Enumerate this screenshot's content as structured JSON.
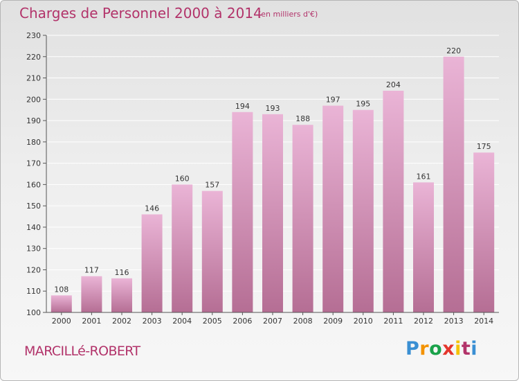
{
  "header": {
    "title": "Charges de Personnel 2000 à 2014",
    "subtitle": "(en milliers d'€)"
  },
  "footer": {
    "commune": "MARCILLé-ROBERT",
    "brand": "Proxiti",
    "brand_colors": [
      "#3a8fd3",
      "#f39200",
      "#1aa24a",
      "#e4352c",
      "#f6c200",
      "#b2336a",
      "#3a8fd3"
    ]
  },
  "colors": {
    "title": "#b2336a",
    "bar_top": "#eab4d6",
    "bar_bottom": "#b56e94",
    "axis": "#555555",
    "grid": "#ffffff"
  },
  "chart_data": {
    "type": "bar",
    "categories": [
      "2000",
      "2001",
      "2002",
      "2003",
      "2004",
      "2005",
      "2006",
      "2007",
      "2008",
      "2009",
      "2010",
      "2011",
      "2012",
      "2013",
      "2014"
    ],
    "values": [
      108,
      117,
      116,
      146,
      160,
      157,
      194,
      193,
      188,
      197,
      195,
      204,
      161,
      220,
      175
    ],
    "ylim": [
      100,
      230
    ],
    "yticks": [
      100,
      110,
      120,
      130,
      140,
      150,
      160,
      170,
      180,
      190,
      200,
      210,
      220,
      230
    ],
    "grid": true,
    "data_labels": true
  }
}
